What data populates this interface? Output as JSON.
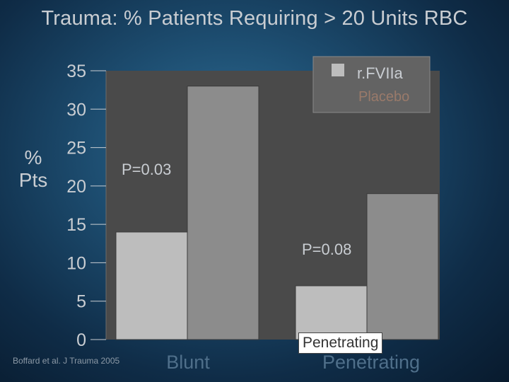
{
  "slide": {
    "title": "Trauma: % Patients Requiring > 20 Units RBC",
    "citation": "Boffard et al. J Trauma 2005",
    "tooltip": "Penetrating"
  },
  "chart_data": {
    "type": "bar",
    "title": "Trauma: % Patients Requiring > 20 Units RBC",
    "ylabel": "% Pts",
    "xlabel": "",
    "categories": [
      "Blunt",
      "Penetrating"
    ],
    "series": [
      {
        "name": "r.FVIIa",
        "values": [
          14,
          7
        ],
        "color": "#bdbdbd"
      },
      {
        "name": "Placebo",
        "values": [
          33,
          19
        ],
        "color": "#8c8c8c"
      }
    ],
    "ylim": [
      0,
      35
    ],
    "yticks": [
      0,
      5,
      10,
      15,
      20,
      25,
      30,
      35
    ],
    "annotations": [
      "P=0.03",
      "P=0.08"
    ],
    "legend_position": "top-right",
    "grid": false
  },
  "colors": {
    "background": "#1d4d70",
    "text": "#c9cdd2",
    "plot_area": "#4a4a4a"
  }
}
